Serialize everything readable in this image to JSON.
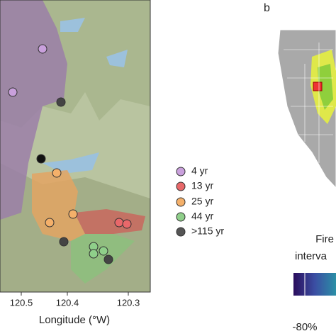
{
  "panel_a": {
    "legend": [
      "4 yr",
      "13 yr",
      "25 yr",
      "44 yr",
      ">115 yr"
    ],
    "x_axis": {
      "label": "Longitude (°W)",
      "ticks": [
        "120.5",
        "120.4",
        "120.3"
      ]
    }
  },
  "panel_b": {
    "label": "b",
    "colorbar": {
      "title_line1": "Fire",
      "title_line2": "interva",
      "tick": "-80%"
    }
  }
}
